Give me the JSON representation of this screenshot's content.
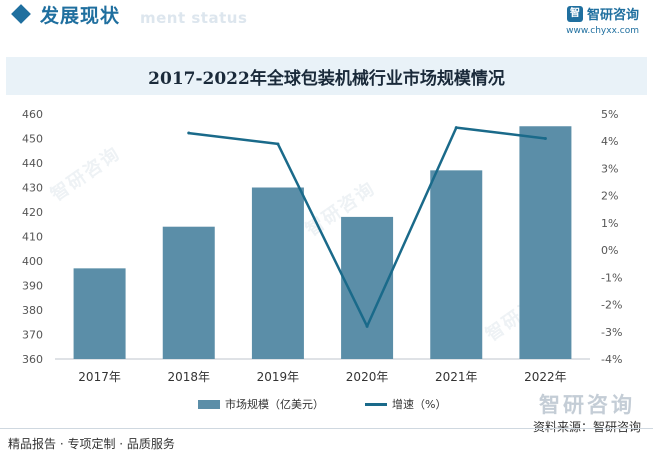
{
  "header": {
    "section_title": "发展现状",
    "section_subtitle": "ment status",
    "brand_logo_char": "智",
    "brand_name": "智研咨询",
    "brand_url": "www.chyxx.com"
  },
  "watermark": {
    "text": "智研咨询"
  },
  "chart_data": {
    "type": "bar+line",
    "title": "2017-2022年全球包装机械行业市场规模情况",
    "categories": [
      "2017年",
      "2018年",
      "2019年",
      "2020年",
      "2021年",
      "2022年"
    ],
    "series": [
      {
        "name": "市场规模（亿美元）",
        "type": "bar",
        "axis": "left",
        "color": "#5b8ea8",
        "values": [
          397,
          414,
          430,
          418,
          437,
          455
        ]
      },
      {
        "name": "增速（%）",
        "type": "line",
        "axis": "right",
        "color": "#1a6a8a",
        "values": [
          null,
          4.3,
          3.9,
          -2.8,
          4.5,
          4.1
        ]
      }
    ],
    "left_axis": {
      "ylim": [
        360,
        460
      ],
      "ticks": [
        360,
        370,
        380,
        390,
        400,
        410,
        420,
        430,
        440,
        450,
        460
      ]
    },
    "right_axis": {
      "ylim": [
        -4,
        5
      ],
      "ticks": [
        "-4%",
        "-3%",
        "-2%",
        "-1%",
        "0%",
        "1%",
        "2%",
        "3%",
        "4%",
        "5%"
      ]
    },
    "grid": false,
    "legend_position": "bottom"
  },
  "footer": {
    "left_text": "精品报告 · 专项定制 · 品质服务",
    "source": "资料来源：智研咨询",
    "brand": "智研咨询"
  }
}
